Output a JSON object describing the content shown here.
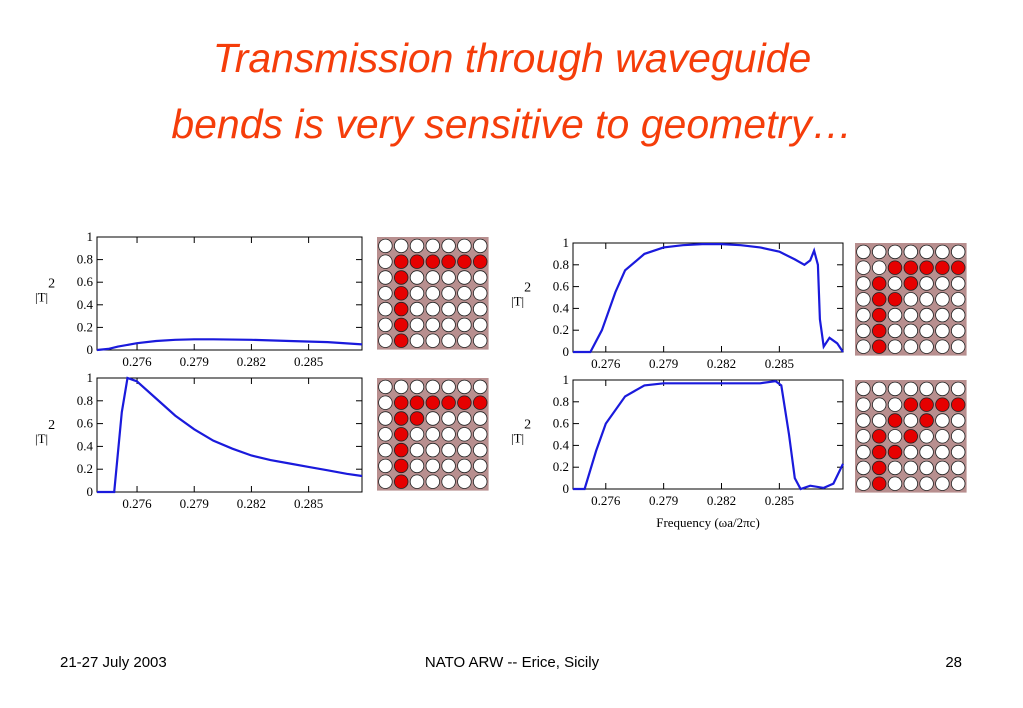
{
  "slide": {
    "title_line1": "Transmission through waveguide",
    "title_line2": "bends is very sensitive to geometry…",
    "footer_left": "21-27 July 2003",
    "footer_center": "NATO ARW --  Erice, Sicily",
    "footer_right": "28"
  },
  "chart_data": [
    {
      "type": "line",
      "ylabel": "|T|",
      "ylabel_superscript": "2",
      "x": [
        0.2739,
        0.2745,
        0.275,
        0.276,
        0.277,
        0.278,
        0.279,
        0.28,
        0.282,
        0.284,
        0.286,
        0.2878
      ],
      "series": [
        {
          "color": "#1a1adc",
          "values": [
            0.0,
            0.01,
            0.03,
            0.06,
            0.08,
            0.09,
            0.095,
            0.095,
            0.09,
            0.08,
            0.07,
            0.05
          ]
        }
      ],
      "xlim": [
        0.2739,
        0.2878
      ],
      "xticks": [
        0.276,
        0.279,
        0.282,
        0.285
      ],
      "ylim": [
        0,
        1
      ],
      "yticks": [
        0,
        0.2,
        0.4,
        0.6,
        0.8,
        1
      ]
    },
    {
      "type": "line",
      "ylabel": "|T|",
      "ylabel_superscript": "2",
      "x": [
        0.2739,
        0.2748,
        0.2752,
        0.2755,
        0.276,
        0.277,
        0.278,
        0.279,
        0.28,
        0.281,
        0.282,
        0.283,
        0.284,
        0.285,
        0.286,
        0.287,
        0.2878
      ],
      "series": [
        {
          "color": "#1a1adc",
          "values": [
            0,
            0,
            0.7,
            1,
            0.97,
            0.82,
            0.67,
            0.55,
            0.45,
            0.38,
            0.32,
            0.28,
            0.25,
            0.22,
            0.19,
            0.16,
            0.14
          ]
        }
      ],
      "xlim": [
        0.2739,
        0.2878
      ],
      "xticks": [
        0.276,
        0.279,
        0.282,
        0.285
      ],
      "ylim": [
        0,
        1
      ],
      "yticks": [
        0,
        0.2,
        0.4,
        0.6,
        0.8,
        1
      ]
    },
    {
      "type": "line",
      "ylabel": "|T|",
      "ylabel_superscript": "2",
      "x": [
        0.2743,
        0.2752,
        0.2758,
        0.2765,
        0.277,
        0.278,
        0.279,
        0.28,
        0.281,
        0.282,
        0.283,
        0.284,
        0.285,
        0.2858,
        0.2863,
        0.2866,
        0.2868,
        0.287,
        0.2871,
        0.2873,
        0.2876,
        0.288,
        0.2883
      ],
      "series": [
        {
          "color": "#1a1adc",
          "values": [
            0,
            0,
            0.2,
            0.55,
            0.75,
            0.9,
            0.96,
            0.98,
            0.99,
            0.99,
            0.98,
            0.96,
            0.92,
            0.85,
            0.8,
            0.84,
            0.93,
            0.8,
            0.3,
            0.05,
            0.13,
            0.08,
            0
          ]
        }
      ],
      "xlim": [
        0.2743,
        0.2883
      ],
      "xticks": [
        0.276,
        0.279,
        0.282,
        0.285
      ],
      "ylim": [
        0,
        1
      ],
      "yticks": [
        0,
        0.2,
        0.4,
        0.6,
        0.8,
        1
      ]
    },
    {
      "type": "line",
      "ylabel": "|T|",
      "ylabel_superscript": "2",
      "xlabel": "Frequency (ωa/2πc)",
      "x": [
        0.2743,
        0.2749,
        0.2755,
        0.276,
        0.277,
        0.278,
        0.279,
        0.282,
        0.284,
        0.2848,
        0.2851,
        0.2855,
        0.2858,
        0.2861,
        0.2866,
        0.2873,
        0.2878,
        0.2883
      ],
      "series": [
        {
          "color": "#1a1adc",
          "values": [
            0,
            0,
            0.35,
            0.6,
            0.85,
            0.95,
            0.97,
            0.97,
            0.97,
            0.99,
            0.95,
            0.5,
            0.1,
            0,
            0.03,
            0.01,
            0.05,
            0.23
          ]
        }
      ],
      "xlim": [
        0.2743,
        0.2883
      ],
      "xticks": [
        0.276,
        0.279,
        0.282,
        0.285
      ],
      "ylim": [
        0,
        1
      ],
      "yticks": [
        0,
        0.2,
        0.4,
        0.6,
        0.8,
        1
      ]
    }
  ]
}
